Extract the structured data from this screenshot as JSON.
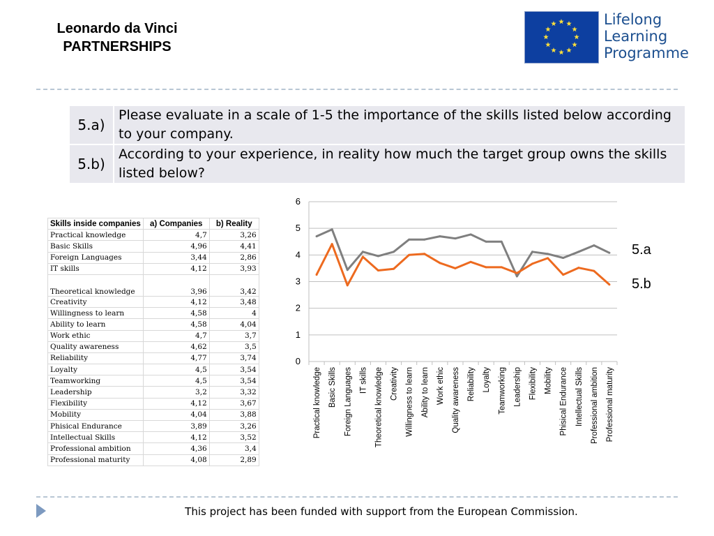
{
  "header": {
    "title_line1": "Leonardo da Vinci",
    "title_line2": "PARTNERSHIPS"
  },
  "logo": {
    "line1": "Lifelong",
    "line2": "Learning",
    "line3": "Programme",
    "flag_color": "#0d3fa0",
    "star_color": "#ffe03a",
    "text_color": "#1c4f8f"
  },
  "questions": [
    {
      "id": "5.a)",
      "text": "Please evaluate in a scale of 1-5 the importance of the skills listed below according to your company."
    },
    {
      "id": "5.b)",
      "text": " According to your experience, in reality how much the target group owns the skills listed below?"
    }
  ],
  "skills_table": {
    "headers": [
      "Skills inside companies",
      "a) Companies",
      "b) Reality"
    ],
    "rows": [
      [
        "Practical knowledge",
        "4,7",
        "3,26"
      ],
      [
        "Basic Skills",
        "4,96",
        "4,41"
      ],
      [
        "Foreign Languages",
        "3,44",
        "2,86"
      ],
      [
        "IT skills",
        "4,12",
        "3,93"
      ],
      [
        "Theoretical knowledge",
        "3,96",
        "3,42"
      ],
      [
        "Creativity",
        "4,12",
        "3,48"
      ],
      [
        "Willingness to learn",
        "4,58",
        "4"
      ],
      [
        "Ability to learn",
        "4,58",
        "4,04"
      ],
      [
        "Work ethic",
        "4,7",
        "3,7"
      ],
      [
        "Quality awareness",
        "4,62",
        "3,5"
      ],
      [
        "Reliability",
        "4,77",
        "3,74"
      ],
      [
        "Loyalty",
        "4,5",
        "3,54"
      ],
      [
        "Teamworking",
        "4,5",
        "3,54"
      ],
      [
        "Leadership",
        "3,2",
        "3,32"
      ],
      [
        "Flexibility",
        "4,12",
        "3,67"
      ],
      [
        "Mobility",
        "4,04",
        "3,88"
      ],
      [
        "Phisical Endurance",
        "3,89",
        "3,26"
      ],
      [
        "Intellectual Skills",
        "4,12",
        "3,52"
      ],
      [
        "Professional ambition",
        "4,36",
        "3,4"
      ],
      [
        "Professional maturity",
        "4,08",
        "2,89"
      ]
    ]
  },
  "chart_data": {
    "type": "line",
    "categories": [
      "Practical knowledge",
      "Basic Skills",
      "Foreign Languages",
      "IT skills",
      "Theoretical knowledge",
      "Creativity",
      "Willingness to learn",
      "Ability to learn",
      "Work ethic",
      "Quality awareness",
      "Reliability",
      "Loyalty",
      "Teamworking",
      "Leadership",
      "Flexibility",
      "Mobility",
      "Phisical Endurance",
      "Intellectual Skills",
      "Professional ambition",
      "Professional maturity"
    ],
    "series": [
      {
        "name": "5.a",
        "color": "#7f7f7f",
        "values": [
          4.7,
          4.96,
          3.44,
          4.12,
          3.96,
          4.12,
          4.58,
          4.58,
          4.7,
          4.62,
          4.77,
          4.5,
          4.5,
          3.2,
          4.12,
          4.04,
          3.89,
          4.12,
          4.36,
          4.08
        ]
      },
      {
        "name": "5.b",
        "color": "#ed6a1f",
        "values": [
          3.26,
          4.41,
          2.86,
          3.93,
          3.42,
          3.48,
          4.0,
          4.04,
          3.7,
          3.5,
          3.74,
          3.54,
          3.54,
          3.32,
          3.67,
          3.88,
          3.26,
          3.52,
          3.4,
          2.89
        ]
      }
    ],
    "ylim": [
      0,
      6
    ],
    "yticks": [
      0,
      1,
      2,
      3,
      4,
      5,
      6
    ],
    "grid": true,
    "legend": "right"
  },
  "footer": {
    "text": "This project has been funded with support from the European Commission."
  }
}
